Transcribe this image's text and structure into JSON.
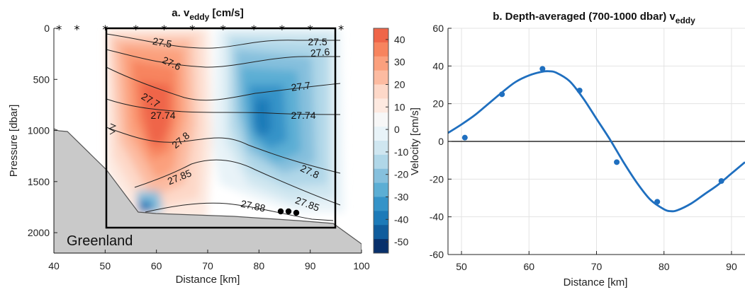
{
  "chart_data": [
    {
      "type": "heatmap",
      "title_main": "a. v",
      "title_sub": "eddy",
      "title_unit": " [cm/s]",
      "xlabel": "Distance [km]",
      "ylabel": "Pressure [dbar]",
      "xlim": [
        40,
        100
      ],
      "ylim": [
        0,
        2200
      ],
      "x_ticks": [
        "40",
        "50",
        "60",
        "70",
        "80",
        "90",
        "100"
      ],
      "y_ticks": [
        "0",
        "500",
        "1000",
        "1500",
        "2000"
      ],
      "station_x": [
        41,
        44.5,
        50,
        56,
        61.5,
        67,
        73,
        79,
        84.5,
        90,
        96
      ],
      "colorbar_ticks": [
        "40",
        "30",
        "20",
        "10",
        "0",
        "-10",
        "-20",
        "-30",
        "-40",
        "-50"
      ],
      "colorbar_colors": [
        "#ef6548",
        "#f7845e",
        "#fba07d",
        "#fcbba1",
        "#fdd8c8",
        "#fde9e0",
        "#f7f7f7",
        "#e8f3f8",
        "#cfe6f0",
        "#b0d7e8",
        "#86c0dd",
        "#5caed4",
        "#3593c8",
        "#1c7ab8",
        "#0f5c9c",
        "#08306b"
      ],
      "isopycnal_labels": [
        "27.5",
        "27.6",
        "27.5",
        "27.6",
        "27.7",
        "27.7",
        "27.74",
        "27.74",
        "27.8",
        "27.8",
        "27.85",
        "27.85",
        "27.88"
      ],
      "annotation": "Greenland"
    },
    {
      "type": "line",
      "title_main": "b. Depth-averaged (700-1000 dbar) v",
      "title_sub": "eddy",
      "xlabel": "Distance [km]",
      "ylabel": "Velocity [cm/s]",
      "xlim": [
        48,
        92
      ],
      "ylim": [
        -60,
        60
      ],
      "x_ticks": [
        "50",
        "60",
        "70",
        "80",
        "90"
      ],
      "y_ticks": [
        "60",
        "40",
        "20",
        "0",
        "-20",
        "-40",
        "-60"
      ],
      "grid": true,
      "points": [
        {
          "x": 50.5,
          "y": 2
        },
        {
          "x": 56,
          "y": 25
        },
        {
          "x": 62,
          "y": 38.5
        },
        {
          "x": 67.5,
          "y": 27
        },
        {
          "x": 73,
          "y": -11
        },
        {
          "x": 79,
          "y": -32
        },
        {
          "x": 88.5,
          "y": -21
        }
      ],
      "fit_curve": [
        {
          "x": 48,
          "y": 4.5
        },
        {
          "x": 50,
          "y": 9
        },
        {
          "x": 52,
          "y": 14
        },
        {
          "x": 54,
          "y": 20
        },
        {
          "x": 56,
          "y": 26
        },
        {
          "x": 58,
          "y": 31.5
        },
        {
          "x": 60,
          "y": 35
        },
        {
          "x": 62,
          "y": 37
        },
        {
          "x": 63,
          "y": 37.2
        },
        {
          "x": 64,
          "y": 36.5
        },
        {
          "x": 66,
          "y": 32
        },
        {
          "x": 68,
          "y": 23
        },
        {
          "x": 70,
          "y": 12
        },
        {
          "x": 72,
          "y": 1
        },
        {
          "x": 74,
          "y": -11
        },
        {
          "x": 76,
          "y": -22
        },
        {
          "x": 78,
          "y": -31
        },
        {
          "x": 80,
          "y": -36
        },
        {
          "x": 81,
          "y": -37
        },
        {
          "x": 82,
          "y": -36.5
        },
        {
          "x": 84,
          "y": -33
        },
        {
          "x": 86,
          "y": -28
        },
        {
          "x": 88,
          "y": -23
        },
        {
          "x": 90,
          "y": -17
        },
        {
          "x": 92,
          "y": -11
        }
      ],
      "series_color": "#1f6fbf"
    }
  ]
}
